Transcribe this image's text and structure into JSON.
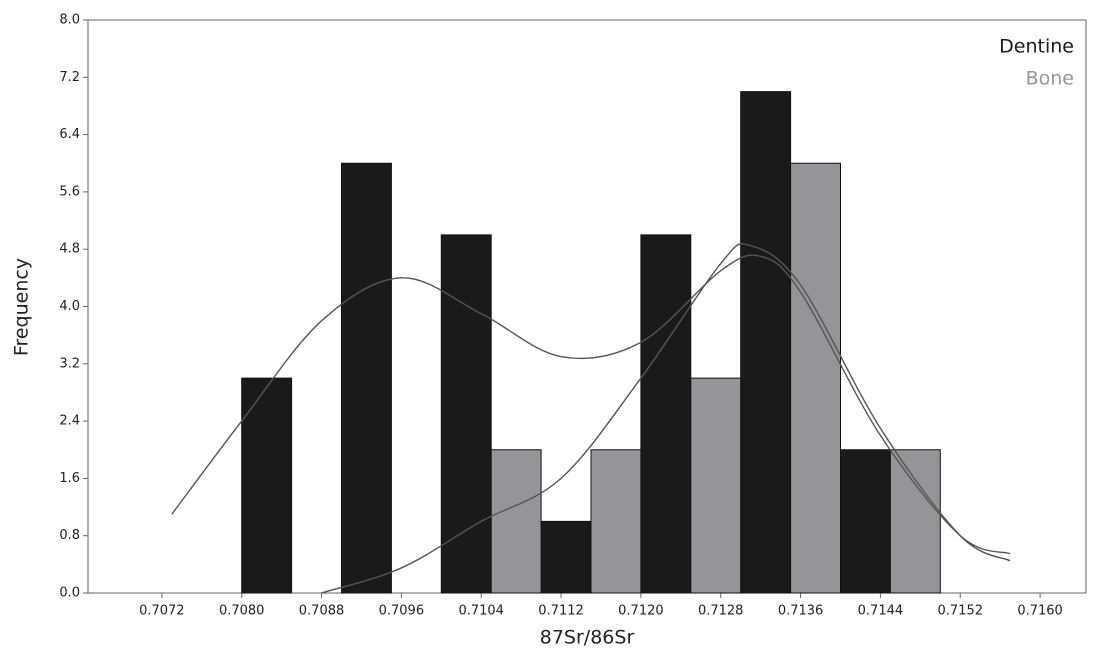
{
  "chart_data": {
    "type": "histogram",
    "xlabel": "87Sr/86Sr",
    "ylabel": "Frequency",
    "bins": [
      0.708,
      0.7085,
      0.709,
      0.7095,
      0.71,
      0.7105,
      0.711,
      0.7115,
      0.712,
      0.7125,
      0.713,
      0.7135,
      0.714,
      0.7145,
      0.715
    ],
    "series": [
      {
        "name": "Dentine",
        "color": "#1a1a1a",
        "values": [
          3,
          0,
          6,
          0,
          5,
          0,
          1,
          0,
          5,
          0,
          7,
          0,
          2,
          0
        ]
      },
      {
        "name": "Bone",
        "color": "#939598",
        "values": [
          0,
          0,
          0,
          0,
          0,
          2,
          0,
          2,
          0,
          3,
          0,
          6,
          0,
          2
        ]
      }
    ],
    "curves": [
      {
        "color": "#555555",
        "x": [
          0.7073,
          0.708,
          0.7088,
          0.7096,
          0.7104,
          0.7112,
          0.712,
          0.7128,
          0.7132,
          0.7136,
          0.7144,
          0.7152,
          0.7157
        ],
        "values": [
          1.1,
          2.4,
          3.8,
          4.4,
          3.9,
          3.3,
          3.5,
          4.5,
          4.7,
          4.2,
          2.2,
          0.8,
          0.55
        ]
      },
      {
        "color": "#555555",
        "x": [
          0.7088,
          0.7096,
          0.7104,
          0.7112,
          0.712,
          0.7128,
          0.7131,
          0.7136,
          0.7144,
          0.7152,
          0.7157
        ],
        "values": [
          0.0,
          0.35,
          1.0,
          1.6,
          3.0,
          4.6,
          4.85,
          4.3,
          2.3,
          0.8,
          0.45
        ]
      }
    ],
    "xlim": [
      0.70646,
      0.71646
    ],
    "ylim": [
      0,
      8
    ],
    "xticks": [
      0.7072,
      {
        "value": 0.708,
        "label": "0.7080"
      },
      0.7088,
      0.7096,
      0.7104,
      0.7112,
      {
        "value": 0.712,
        "label": "0.7120"
      },
      0.7128,
      0.7136,
      0.7144,
      0.7152,
      {
        "value": 0.716,
        "label": "0.7160"
      }
    ],
    "yticks": [
      {
        "value": 0,
        "label": "0.0"
      },
      0.8,
      1.6,
      2.4,
      3.2,
      {
        "value": 4,
        "label": "4.0"
      },
      4.8,
      5.6,
      6.4,
      7.2,
      {
        "value": 8,
        "label": "8.0"
      }
    ],
    "legend": "top-right"
  }
}
